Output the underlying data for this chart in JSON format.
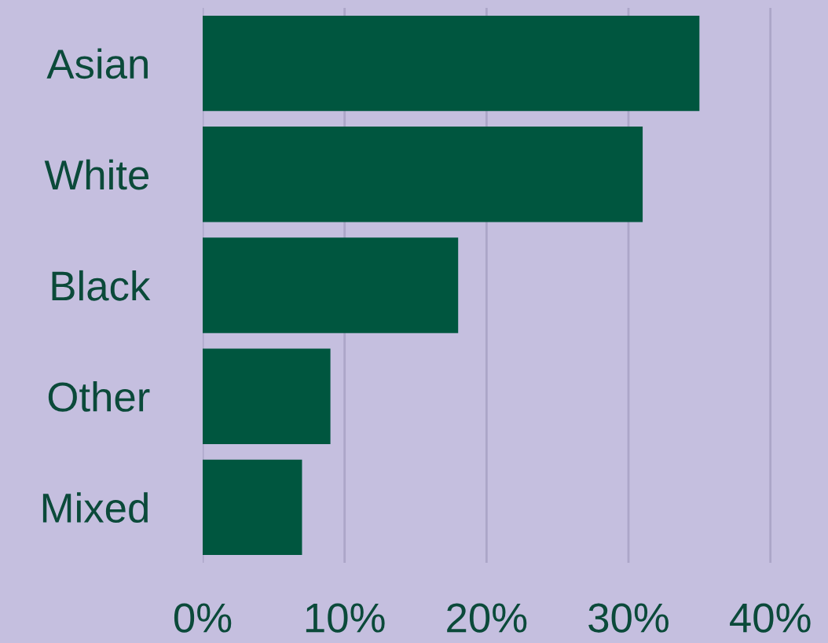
{
  "chart_data": {
    "type": "bar",
    "orientation": "horizontal",
    "categories": [
      "Asian",
      "White",
      "Black",
      "Other",
      "Mixed"
    ],
    "values": [
      35,
      31,
      18,
      9,
      7
    ],
    "color": "#00563f",
    "xlim": [
      0,
      44
    ],
    "xticks": [
      {
        "value": 0,
        "label": "0%"
      },
      {
        "value": 10,
        "label": "10%"
      },
      {
        "value": 20,
        "label": "20%"
      },
      {
        "value": 30,
        "label": "30%"
      },
      {
        "value": 40,
        "label": "40%"
      }
    ],
    "grid": "x"
  }
}
